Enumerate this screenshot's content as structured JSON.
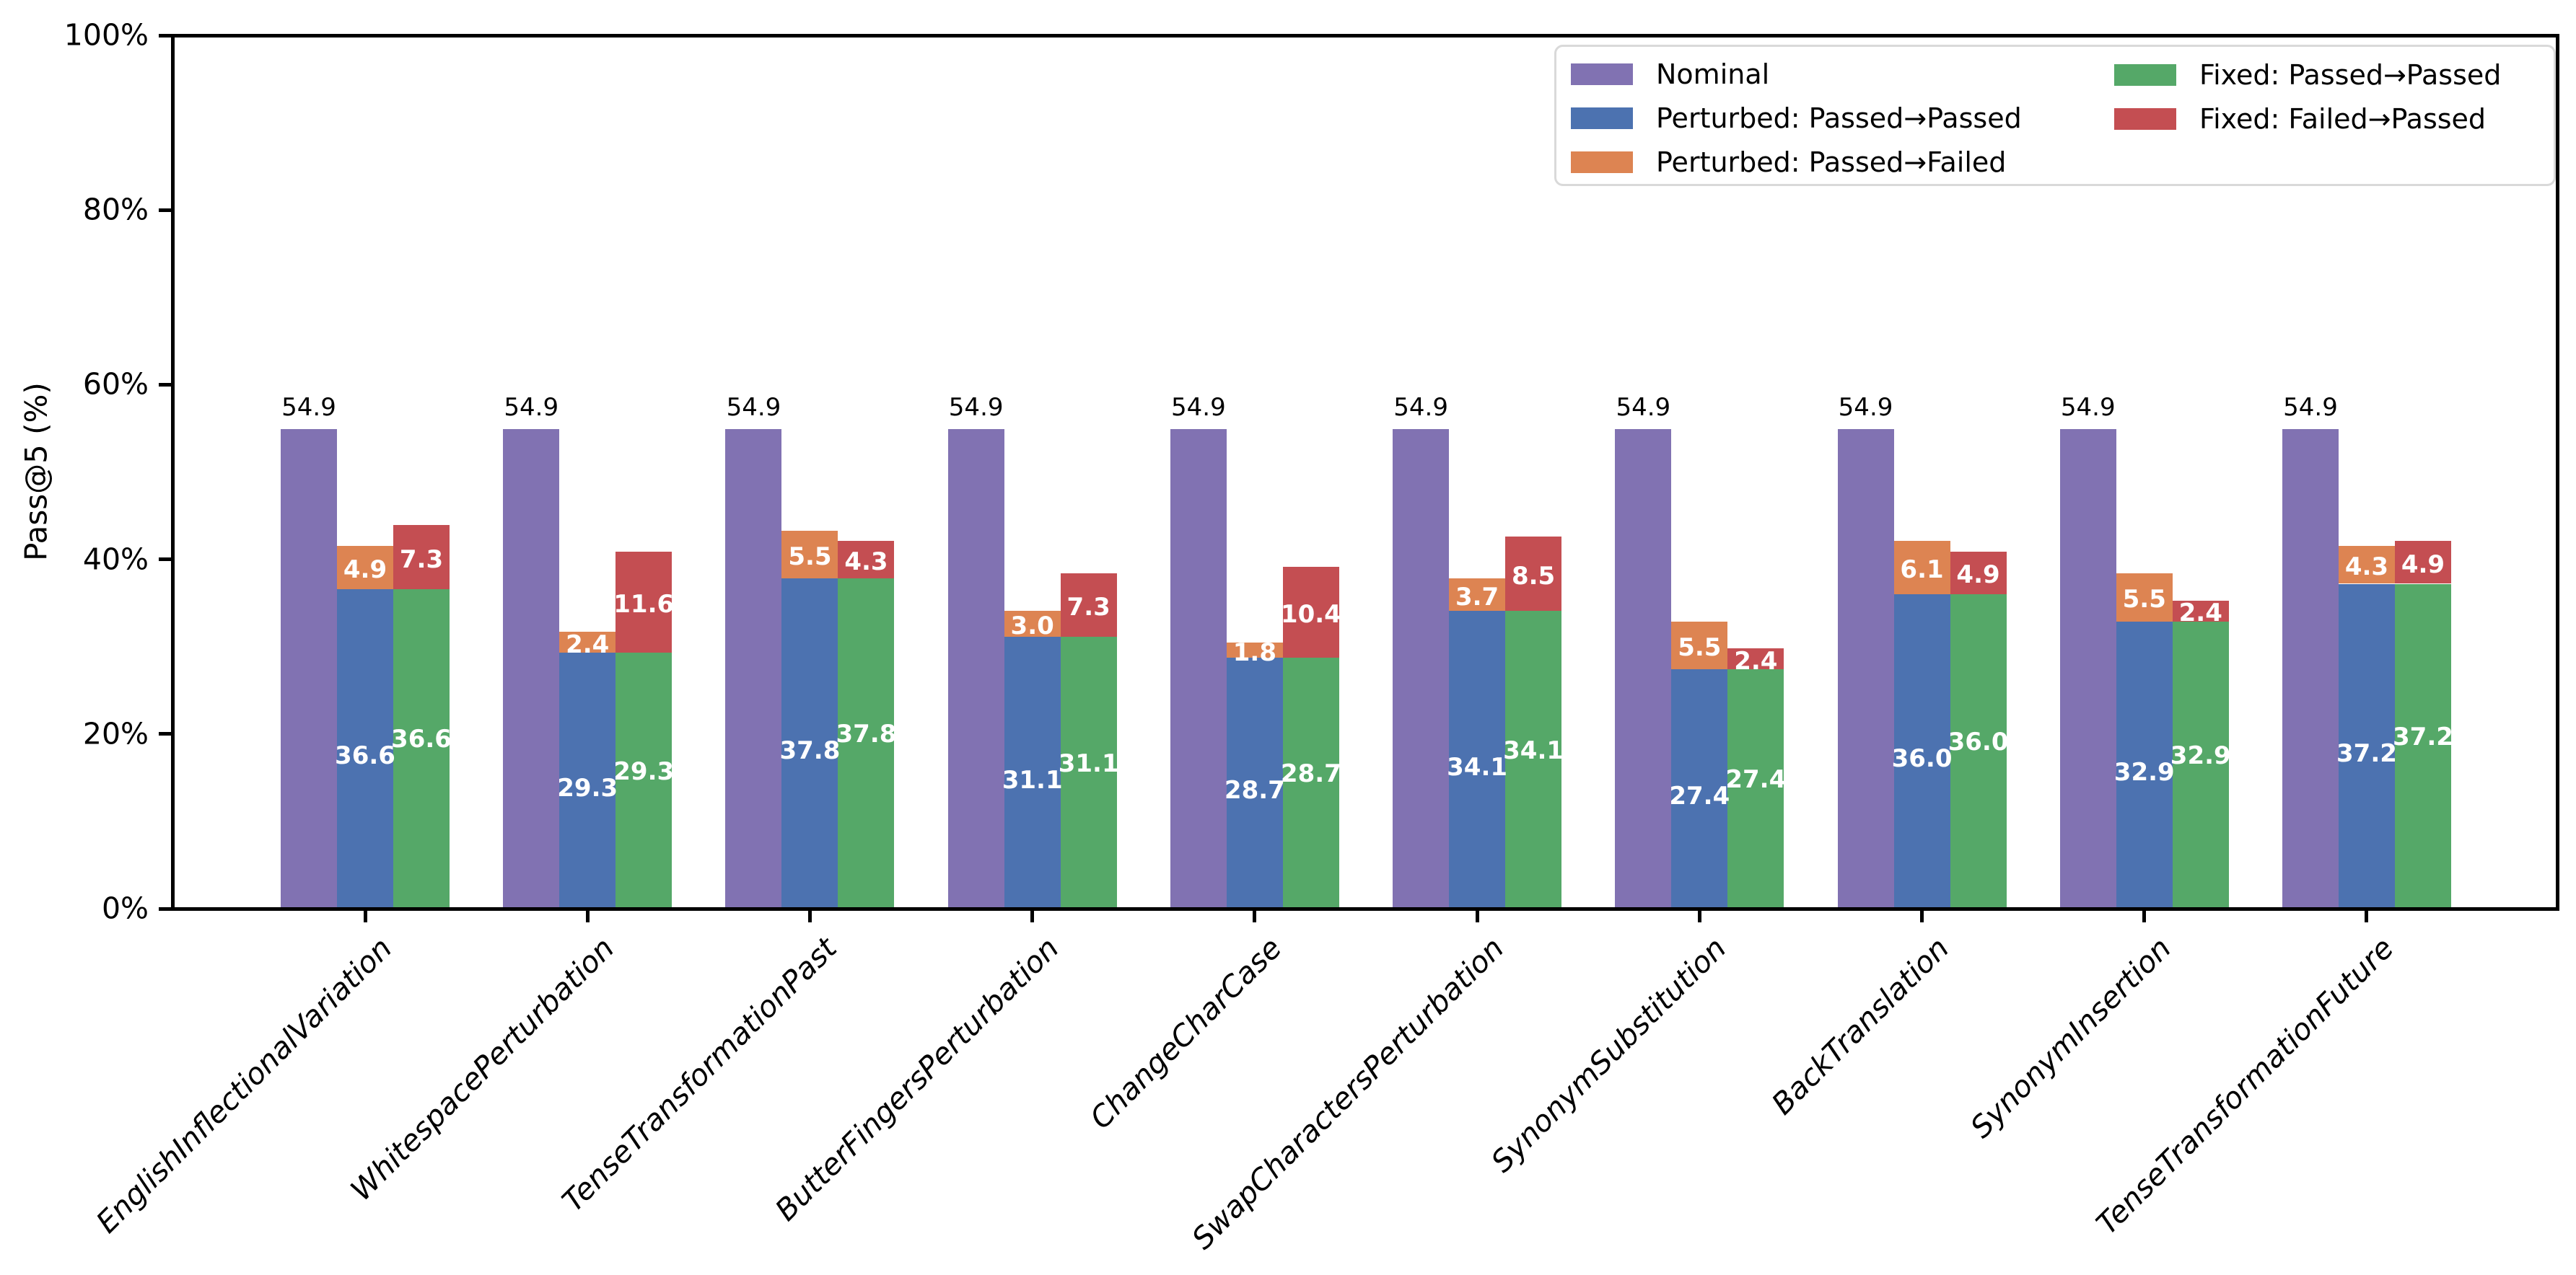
{
  "figure": {
    "background": "#ffffff",
    "axis_color": "#000000",
    "legend_border_color": "#d9d9d9"
  },
  "chart_data": {
    "type": "bar",
    "title": "",
    "xlabel": "",
    "ylabel": "Pass@5 (%)",
    "ylim": [
      0,
      100
    ],
    "grid": false,
    "legend_position": "upper right",
    "yticks": [
      {
        "value": 0,
        "label": "0%"
      },
      {
        "value": 20,
        "label": "20%"
      },
      {
        "value": 40,
        "label": "40%"
      },
      {
        "value": 60,
        "label": "60%"
      },
      {
        "value": 80,
        "label": "80%"
      },
      {
        "value": 100,
        "label": "100%"
      }
    ],
    "categories": [
      "EnglishInflectionalVariation",
      "WhitespacePerturbation",
      "TenseTransformationPast",
      "ButterFingersPerturbation",
      "ChangeCharCase",
      "SwapCharactersPerturbation",
      "SynonymSubstitution",
      "BackTranslation",
      "SynonymInsertion",
      "TenseTransformationFuture"
    ],
    "series": [
      {
        "name": "Nominal",
        "color": "#8172b2",
        "role": "single",
        "values": [
          54.9,
          54.9,
          54.9,
          54.9,
          54.9,
          54.9,
          54.9,
          54.9,
          54.9,
          54.9
        ]
      },
      {
        "name": "Perturbed: Passed→Passed",
        "color": "#4c72b0",
        "role": "stack1-base",
        "values": [
          36.6,
          29.3,
          37.8,
          31.1,
          28.7,
          34.1,
          27.4,
          36.0,
          32.9,
          37.2
        ]
      },
      {
        "name": "Perturbed: Passed→Failed",
        "color": "#dd8452",
        "role": "stack1-top",
        "values": [
          4.9,
          2.4,
          5.5,
          3.0,
          1.8,
          3.7,
          5.5,
          6.1,
          5.5,
          4.3
        ]
      },
      {
        "name": "Fixed: Passed→Passed",
        "color": "#55a868",
        "role": "stack2-base",
        "values": [
          36.6,
          29.3,
          37.8,
          31.1,
          28.7,
          34.1,
          27.4,
          36.0,
          32.9,
          37.2
        ]
      },
      {
        "name": "Fixed: Failed→Passed",
        "color": "#c44e52",
        "role": "stack2-top",
        "values": [
          7.3,
          11.6,
          4.3,
          7.3,
          10.4,
          8.5,
          2.4,
          4.9,
          2.4,
          4.9
        ]
      }
    ],
    "bar_value_labels": {
      "color": "#ffffff",
      "nominal_color": "#000000",
      "decimals": 1
    }
  }
}
